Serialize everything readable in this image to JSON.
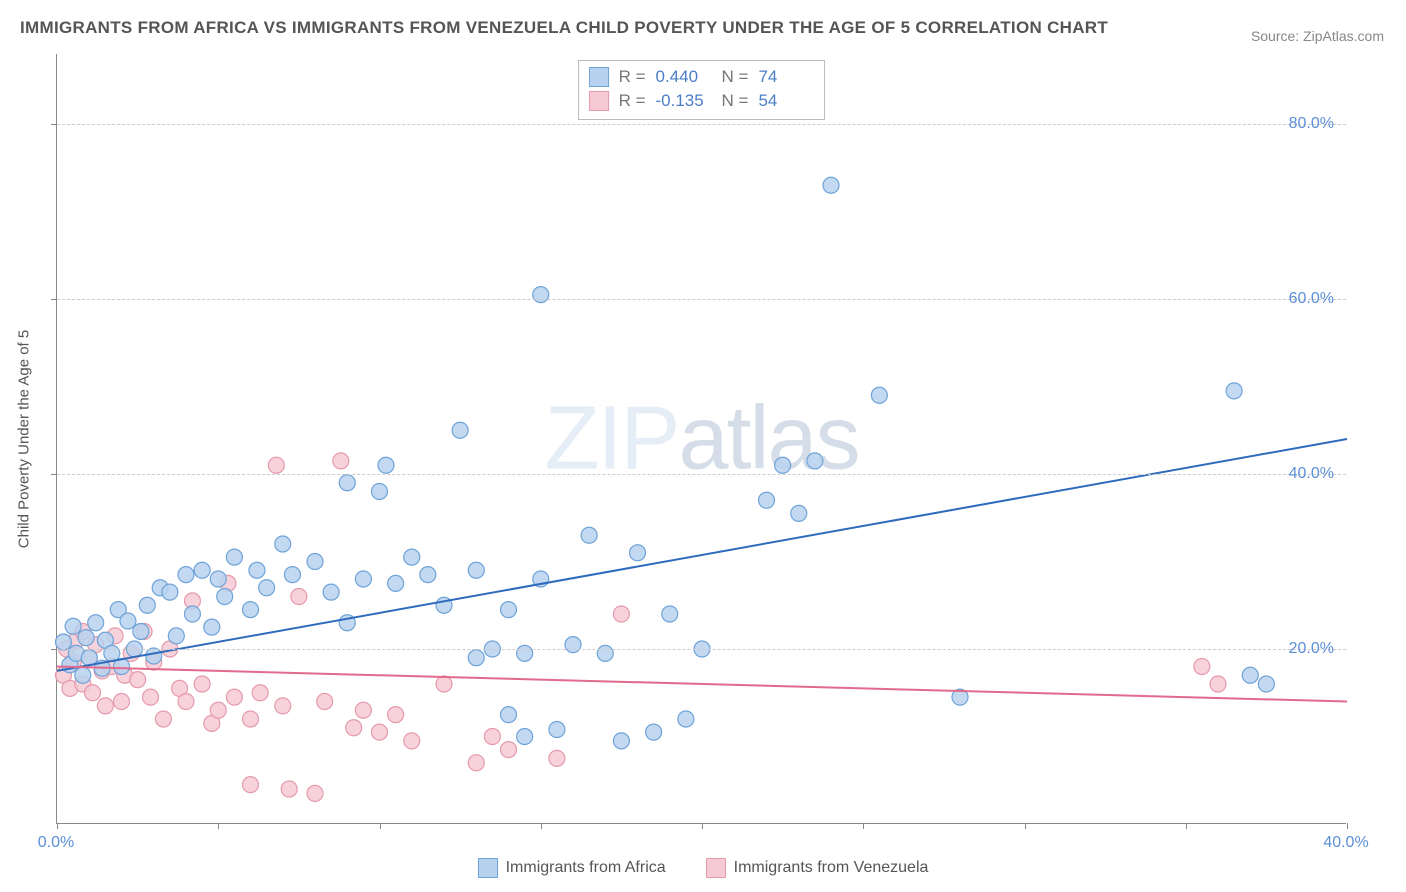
{
  "title": "IMMIGRANTS FROM AFRICA VS IMMIGRANTS FROM VENEZUELA CHILD POVERTY UNDER THE AGE OF 5 CORRELATION CHART",
  "source": "Source: ZipAtlas.com",
  "y_axis_label": "Child Poverty Under the Age of 5",
  "watermark_a": "ZIP",
  "watermark_b": "atlas",
  "chart": {
    "type": "scatter",
    "background_color": "#ffffff",
    "grid_color": "#cccccc",
    "grid_dash": "4 4",
    "axis_color": "#888888",
    "xlim": [
      0,
      40
    ],
    "ylim": [
      0,
      88
    ],
    "x_ticks": [
      0,
      5,
      10,
      15,
      20,
      25,
      30,
      35,
      40
    ],
    "x_tick_labels": {
      "0": "0.0%",
      "40": "40.0%"
    },
    "y_gridlines": [
      20,
      40,
      60,
      80
    ],
    "y_tick_labels": {
      "20": "20.0%",
      "40": "40.0%",
      "60": "60.0%",
      "80": "80.0%"
    },
    "tick_label_color": "#5b8fd6",
    "tick_label_fontsize": 16,
    "series": [
      {
        "key": "africa",
        "label": "Immigrants from Africa",
        "marker_fill": "#b7d2ee",
        "marker_stroke": "#6fa3d8",
        "marker_radius": 8,
        "line_color": "#2e6bbd",
        "line_width": 2,
        "stats": {
          "R": "0.440",
          "N": "74"
        },
        "trend": {
          "x1": 0,
          "y1": 17.5,
          "x2": 40,
          "y2": 44.0
        },
        "points": [
          [
            0.2,
            20.8
          ],
          [
            0.4,
            18.2
          ],
          [
            0.5,
            22.6
          ],
          [
            0.6,
            19.5
          ],
          [
            0.8,
            17.0
          ],
          [
            0.9,
            21.3
          ],
          [
            1.0,
            19.0
          ],
          [
            1.2,
            23.0
          ],
          [
            1.4,
            17.8
          ],
          [
            1.5,
            21.0
          ],
          [
            1.7,
            19.5
          ],
          [
            1.9,
            24.5
          ],
          [
            2.0,
            18.0
          ],
          [
            2.2,
            23.2
          ],
          [
            2.4,
            20.0
          ],
          [
            2.6,
            22.0
          ],
          [
            2.8,
            25.0
          ],
          [
            3.0,
            19.2
          ],
          [
            3.2,
            27.0
          ],
          [
            3.5,
            26.5
          ],
          [
            3.7,
            21.5
          ],
          [
            4.0,
            28.5
          ],
          [
            4.2,
            24.0
          ],
          [
            4.5,
            29.0
          ],
          [
            4.8,
            22.5
          ],
          [
            5.0,
            28.0
          ],
          [
            5.2,
            26.0
          ],
          [
            5.5,
            30.5
          ],
          [
            6.0,
            24.5
          ],
          [
            6.2,
            29.0
          ],
          [
            6.5,
            27.0
          ],
          [
            7.0,
            32.0
          ],
          [
            7.3,
            28.5
          ],
          [
            8.0,
            30.0
          ],
          [
            8.5,
            26.5
          ],
          [
            9.0,
            39.0
          ],
          [
            9.0,
            23.0
          ],
          [
            9.5,
            28.0
          ],
          [
            10.0,
            38.0
          ],
          [
            10.2,
            41.0
          ],
          [
            10.5,
            27.5
          ],
          [
            11.0,
            30.5
          ],
          [
            11.5,
            28.5
          ],
          [
            12.0,
            25.0
          ],
          [
            12.5,
            45.0
          ],
          [
            13.0,
            19.0
          ],
          [
            13.0,
            29.0
          ],
          [
            13.5,
            20.0
          ],
          [
            14.0,
            12.5
          ],
          [
            14.0,
            24.5
          ],
          [
            14.5,
            10.0
          ],
          [
            14.5,
            19.5
          ],
          [
            15.0,
            60.5
          ],
          [
            15.0,
            28.0
          ],
          [
            15.5,
            10.8
          ],
          [
            16.0,
            20.5
          ],
          [
            16.5,
            33.0
          ],
          [
            17.0,
            19.5
          ],
          [
            17.5,
            9.5
          ],
          [
            18.0,
            31.0
          ],
          [
            18.5,
            10.5
          ],
          [
            19.0,
            24.0
          ],
          [
            19.5,
            12.0
          ],
          [
            20.0,
            20.0
          ],
          [
            22.0,
            37.0
          ],
          [
            22.5,
            41.0
          ],
          [
            23.0,
            35.5
          ],
          [
            23.5,
            41.5
          ],
          [
            24.0,
            73.0
          ],
          [
            25.5,
            49.0
          ],
          [
            28.0,
            14.5
          ],
          [
            36.5,
            49.5
          ],
          [
            37.0,
            17.0
          ],
          [
            37.5,
            16.0
          ]
        ]
      },
      {
        "key": "venezuela",
        "label": "Immigrants from Venezuela",
        "marker_fill": "#f6cad4",
        "marker_stroke": "#e59aad",
        "marker_radius": 8,
        "line_color": "#e26a8c",
        "line_width": 2,
        "stats": {
          "R": "-0.135",
          "N": "54"
        },
        "trend": {
          "x1": 0,
          "y1": 18.0,
          "x2": 40,
          "y2": 14.0
        },
        "points": [
          [
            0.2,
            17.0
          ],
          [
            0.3,
            20.0
          ],
          [
            0.4,
            15.5
          ],
          [
            0.5,
            18.5
          ],
          [
            0.6,
            21.0
          ],
          [
            0.8,
            16.0
          ],
          [
            0.8,
            22.0
          ],
          [
            1.0,
            19.0
          ],
          [
            1.1,
            15.0
          ],
          [
            1.2,
            20.5
          ],
          [
            1.4,
            17.5
          ],
          [
            1.5,
            13.5
          ],
          [
            1.7,
            18.0
          ],
          [
            1.8,
            21.5
          ],
          [
            2.0,
            14.0
          ],
          [
            2.1,
            17.0
          ],
          [
            2.3,
            19.5
          ],
          [
            2.5,
            16.5
          ],
          [
            2.7,
            22.0
          ],
          [
            2.9,
            14.5
          ],
          [
            3.0,
            18.5
          ],
          [
            3.3,
            12.0
          ],
          [
            3.5,
            20.0
          ],
          [
            3.8,
            15.5
          ],
          [
            4.0,
            14.0
          ],
          [
            4.2,
            25.5
          ],
          [
            4.5,
            16.0
          ],
          [
            4.8,
            11.5
          ],
          [
            5.0,
            13.0
          ],
          [
            5.3,
            27.5
          ],
          [
            5.5,
            14.5
          ],
          [
            6.0,
            12.0
          ],
          [
            6.0,
            4.5
          ],
          [
            6.3,
            15.0
          ],
          [
            6.8,
            41.0
          ],
          [
            7.0,
            13.5
          ],
          [
            7.2,
            4.0
          ],
          [
            7.5,
            26.0
          ],
          [
            8.0,
            3.5
          ],
          [
            8.3,
            14.0
          ],
          [
            8.8,
            41.5
          ],
          [
            9.2,
            11.0
          ],
          [
            9.5,
            13.0
          ],
          [
            10.0,
            10.5
          ],
          [
            10.5,
            12.5
          ],
          [
            11.0,
            9.5
          ],
          [
            12.0,
            16.0
          ],
          [
            13.0,
            7.0
          ],
          [
            13.5,
            10.0
          ],
          [
            14.0,
            8.5
          ],
          [
            15.5,
            7.5
          ],
          [
            17.5,
            24.0
          ],
          [
            35.5,
            18.0
          ],
          [
            36.0,
            16.0
          ]
        ]
      }
    ],
    "stat_legend_labels": {
      "R": "R =",
      "N": "N ="
    }
  }
}
